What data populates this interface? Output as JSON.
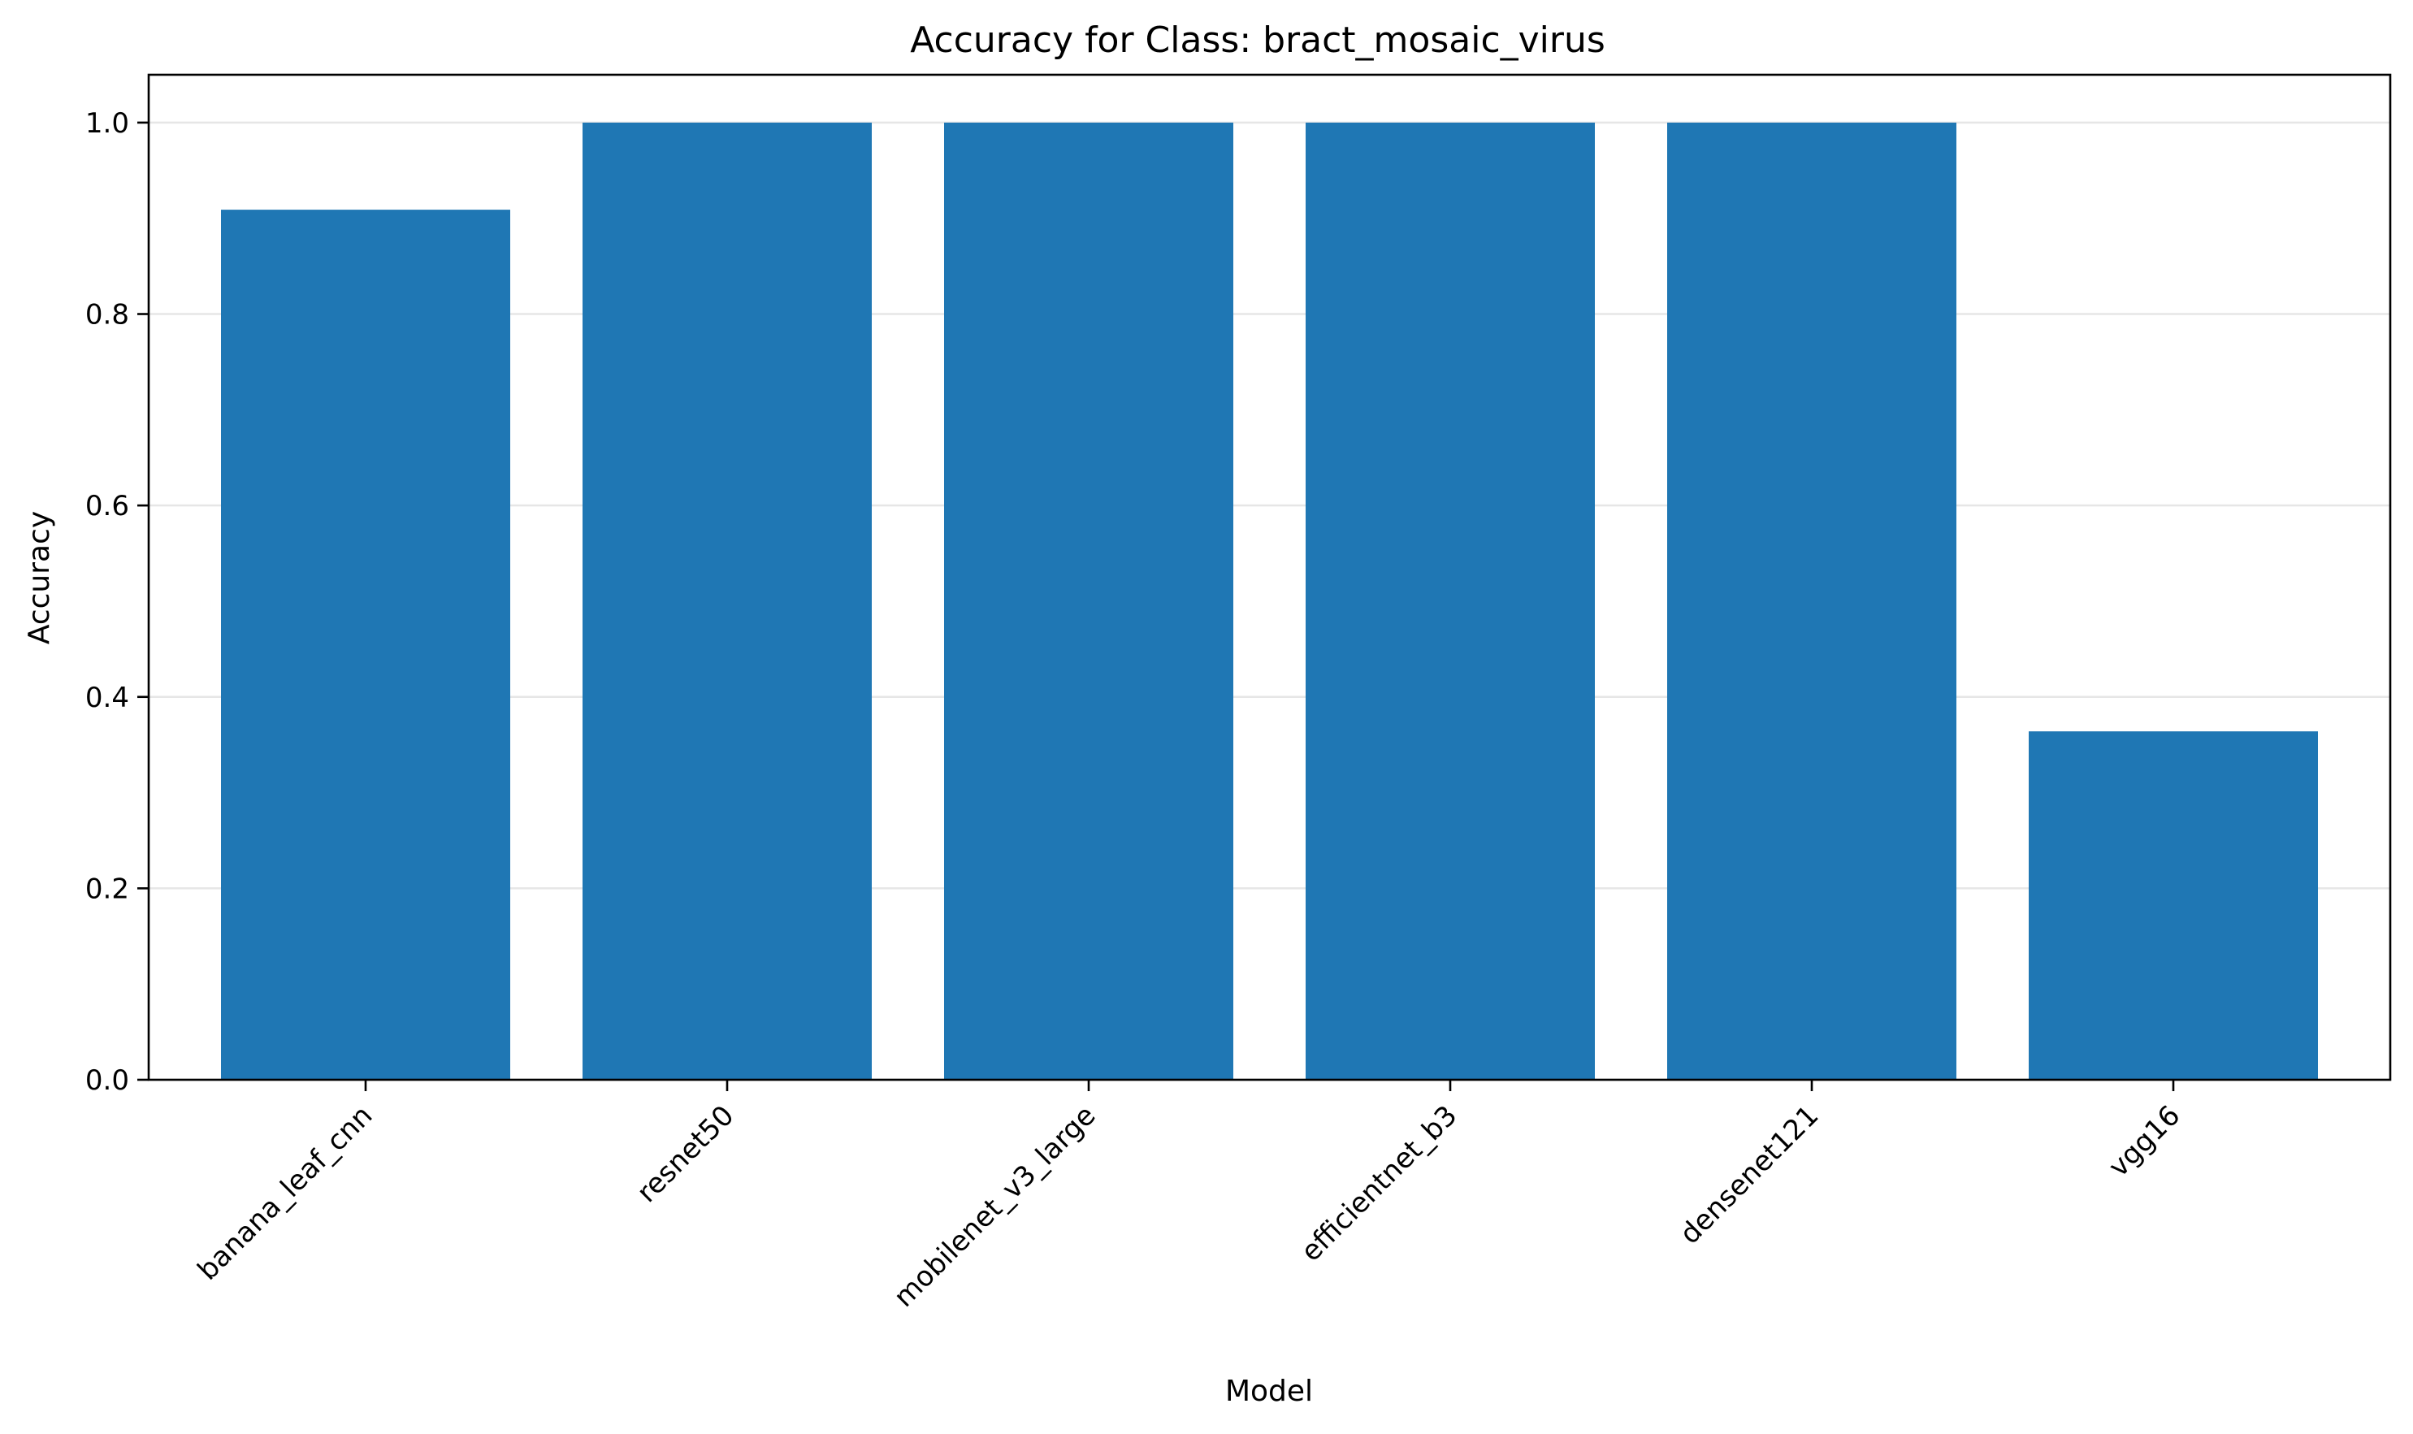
{
  "chart_data": {
    "type": "bar",
    "title": "Accuracy for Class: bract_mosaic_virus",
    "xlabel": "Model",
    "ylabel": "Accuracy",
    "categories": [
      "banana_leaf_cnn",
      "resnet50",
      "mobilenet_v3_large",
      "efficientnet_b3",
      "densenet121",
      "vgg16"
    ],
    "values": [
      0.909,
      1.0,
      1.0,
      1.0,
      1.0,
      0.364
    ],
    "ylim": [
      0,
      1.05
    ],
    "yticks": [
      "0.0",
      "0.2",
      "0.4",
      "0.6",
      "0.8",
      "1.0"
    ],
    "grid": "horizontal",
    "bar_color": "#1f77b4",
    "grid_color": "#e6e6e6"
  }
}
